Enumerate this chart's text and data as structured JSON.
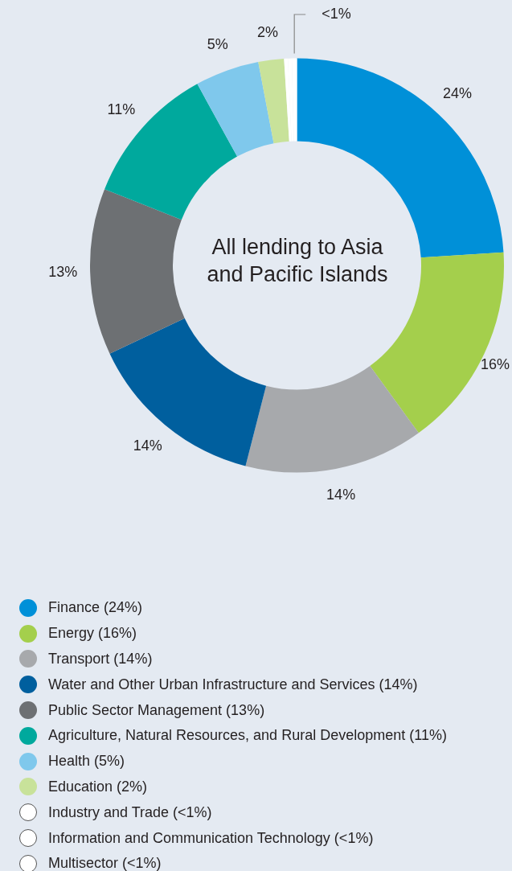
{
  "chart_data": {
    "type": "donut",
    "title": "All lending to Asia and Pacific Islands",
    "categories": [
      "Finance (24%)",
      "Energy (16%)",
      "Transport (14%)",
      "Water and Other Urban Infrastructure and Services (14%)",
      "Public Sector Management (13%)",
      "Agriculture, Natural Resources, and Rural Development (11%)",
      "Health (5%)",
      "Education (2%)",
      "Industry and Trade (<1%)",
      "Information and Communication Technology (<1%)",
      "Multisector (<1%)"
    ],
    "values": [
      24,
      16,
      14,
      14,
      13,
      11,
      5,
      2,
      0.3,
      0.3,
      0.4
    ],
    "colors": [
      "#0090d8",
      "#a4cf4c",
      "#a7a9ac",
      "#005f9e",
      "#6d7073",
      "#00a99d",
      "#7fc8ec",
      "#c8e29a",
      "#ffffff",
      "#ffffff",
      "#ffffff"
    ],
    "value_labels": [
      "24%",
      "16%",
      "14%",
      "14%",
      "13%",
      "11%",
      "5%",
      "2%",
      null,
      null,
      "<1%"
    ],
    "legend": "bottom"
  }
}
